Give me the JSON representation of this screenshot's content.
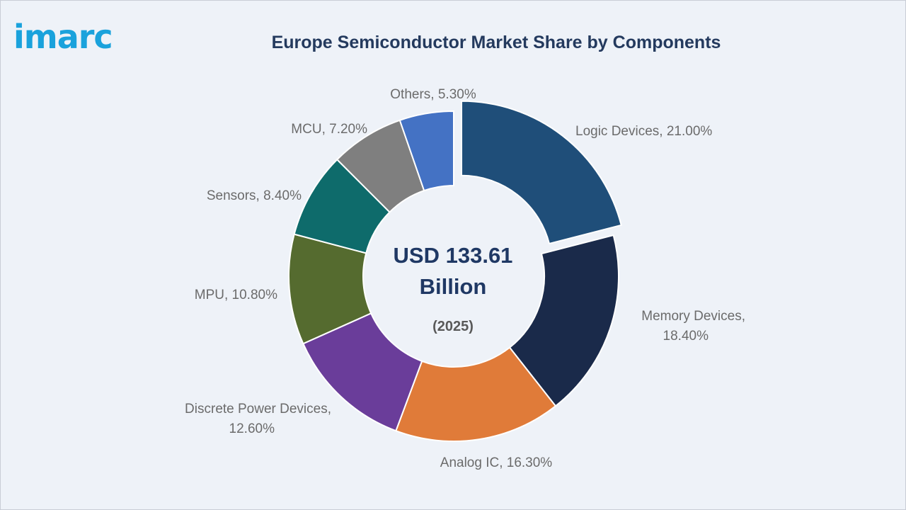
{
  "brand": {
    "logo_text": "imarc",
    "logo_color": "#1aa2dc"
  },
  "chart_data": {
    "type": "pie",
    "variant": "donut",
    "title": "Europe Semiconductor Market Share by Components",
    "center_value_lines": [
      "USD 133.61",
      "Billion"
    ],
    "center_year": "(2025)",
    "unit": "%",
    "slices": [
      {
        "label": "Logic Devices",
        "value": 21.0,
        "display": "Logic Devices, 21.00%",
        "color": "#1f4e79",
        "exploded": true
      },
      {
        "label": "Memory Devices",
        "value": 18.4,
        "display_lines": [
          "Memory Devices,",
          "18.40%"
        ],
        "color": "#1a2a4a"
      },
      {
        "label": "Analog IC",
        "value": 16.3,
        "display": "Analog IC, 16.30%",
        "color": "#e07b39"
      },
      {
        "label": "Discrete Power Devices",
        "value": 12.6,
        "display_lines": [
          "Discrete Power Devices,",
          "12.60%"
        ],
        "color": "#6a3d9a"
      },
      {
        "label": "MPU",
        "value": 10.8,
        "display": "MPU, 10.80%",
        "color": "#556b2f"
      },
      {
        "label": "Sensors",
        "value": 8.4,
        "display": "Sensors, 8.40%",
        "color": "#0e6b6b"
      },
      {
        "label": "MCU",
        "value": 7.2,
        "display": "MCU, 7.20%",
        "color": "#7f7f7f"
      },
      {
        "label": "Others",
        "value": 5.3,
        "display": "Others, 5.30%",
        "color": "#4472c4"
      }
    ]
  }
}
